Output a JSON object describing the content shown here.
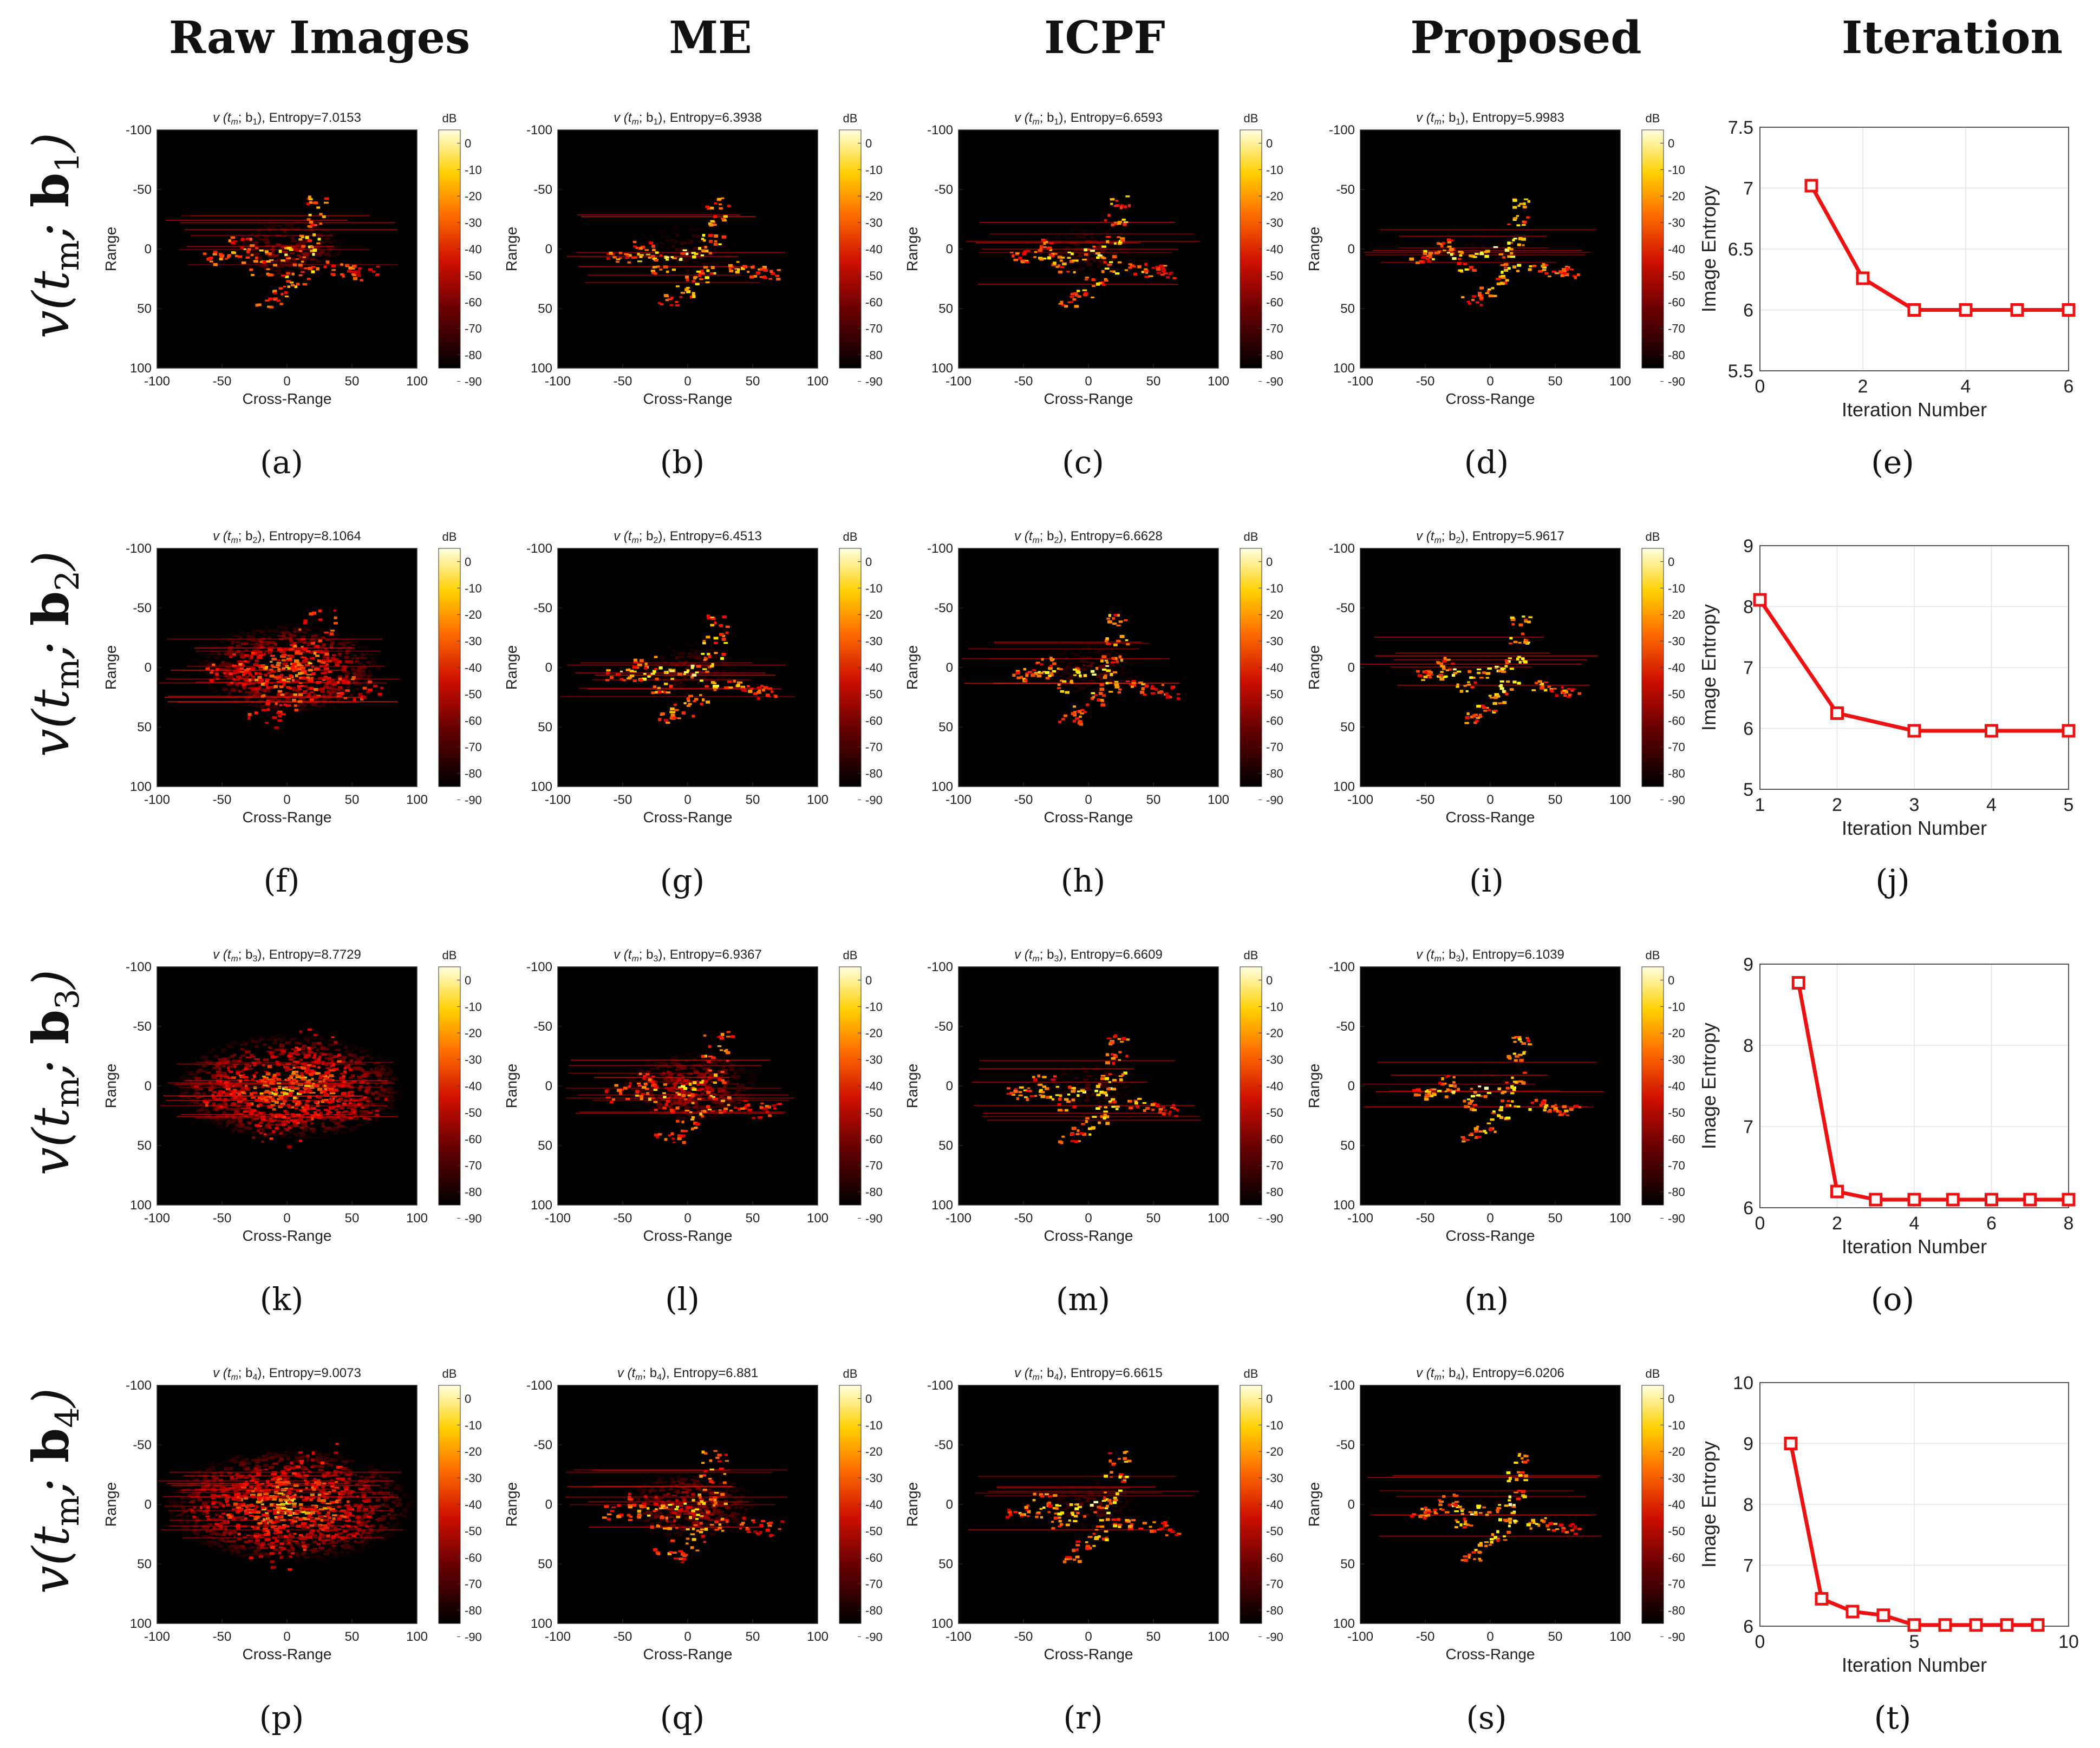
{
  "columns": [
    "Raw Images",
    "ME",
    "ICPF",
    "Proposed",
    "Iteration"
  ],
  "rows": [
    {
      "vector": "b",
      "index": "1"
    },
    {
      "vector": "b",
      "index": "2"
    },
    {
      "vector": "b",
      "index": "3"
    },
    {
      "vector": "b",
      "index": "4"
    }
  ],
  "subfigure_labels": [
    "(a)",
    "(b)",
    "(c)",
    "(d)",
    "(e)",
    "(f)",
    "(g)",
    "(h)",
    "(i)",
    "(j)",
    "(k)",
    "(l)",
    "(m)",
    "(n)",
    "(o)",
    "(p)",
    "(q)",
    "(r)",
    "(s)",
    "(t)"
  ],
  "isar_axes": {
    "xlabel": "Cross-Range",
    "ylabel": "Range",
    "xticks": [
      "-100",
      "-50",
      "0",
      "50",
      "100"
    ],
    "yticks": [
      "-100",
      "-50",
      "0",
      "50",
      "100"
    ],
    "colorbar_unit": "dB",
    "colorbar_ticks": [
      "0",
      "-10",
      "-20",
      "-30",
      "-40",
      "-50",
      "-60",
      "-70",
      "-80",
      "-90"
    ],
    "title_prefix": "v (t",
    "title_mid": "; b",
    "title_suffix": "), Entropy="
  },
  "colors": {
    "line": "#ee1111",
    "hot_low": "#000000",
    "hot_mid": "#d02000",
    "hot_high": "#ffff80"
  },
  "chart_data": [
    {
      "type": "heatmap",
      "row": 1,
      "method": "Raw Images",
      "entropy": "7.0153",
      "spread": 0.25
    },
    {
      "type": "heatmap",
      "row": 1,
      "method": "ME",
      "entropy": "6.3938",
      "spread": 0.12
    },
    {
      "type": "heatmap",
      "row": 1,
      "method": "ICPF",
      "entropy": "6.6593",
      "spread": 0.14
    },
    {
      "type": "heatmap",
      "row": 1,
      "method": "Proposed",
      "entropy": "5.9983",
      "spread": 0.05
    },
    {
      "type": "line",
      "row": 1,
      "xlabel": "Iteration Number",
      "ylabel": "Image Entropy",
      "xlim": [
        0,
        6
      ],
      "ylim": [
        5.5,
        7.5
      ],
      "xticks": [
        "0",
        "2",
        "4",
        "6"
      ],
      "yticks": [
        "5.5",
        "6",
        "6.5",
        "7",
        "7.5"
      ],
      "x": [
        1,
        2,
        3,
        4,
        5,
        6
      ],
      "y": [
        7.02,
        6.26,
        6.0,
        6.0,
        6.0,
        6.0
      ]
    },
    {
      "type": "heatmap",
      "row": 2,
      "method": "Raw Images",
      "entropy": "8.1064",
      "spread": 0.6
    },
    {
      "type": "heatmap",
      "row": 2,
      "method": "ME",
      "entropy": "6.4513",
      "spread": 0.15
    },
    {
      "type": "heatmap",
      "row": 2,
      "method": "ICPF",
      "entropy": "6.6628",
      "spread": 0.14
    },
    {
      "type": "heatmap",
      "row": 2,
      "method": "Proposed",
      "entropy": "5.9617",
      "spread": 0.05
    },
    {
      "type": "line",
      "row": 2,
      "xlabel": "Iteration Number",
      "ylabel": "Image Entropy",
      "xlim": [
        1,
        5
      ],
      "ylim": [
        5,
        9
      ],
      "xticks": [
        "1",
        "2",
        "3",
        "4",
        "5"
      ],
      "yticks": [
        "5",
        "6",
        "7",
        "8",
        "9"
      ],
      "x": [
        1,
        2,
        3,
        4,
        5
      ],
      "y": [
        8.11,
        6.25,
        5.96,
        5.96,
        5.96
      ]
    },
    {
      "type": "heatmap",
      "row": 3,
      "method": "Raw Images",
      "entropy": "8.7729",
      "spread": 0.85
    },
    {
      "type": "heatmap",
      "row": 3,
      "method": "ME",
      "entropy": "6.9367",
      "spread": 0.35
    },
    {
      "type": "heatmap",
      "row": 3,
      "method": "ICPF",
      "entropy": "6.6609",
      "spread": 0.14
    },
    {
      "type": "heatmap",
      "row": 3,
      "method": "Proposed",
      "entropy": "6.1039",
      "spread": 0.06
    },
    {
      "type": "line",
      "row": 3,
      "xlabel": "Iteration Number",
      "ylabel": "Image Entropy",
      "xlim": [
        0,
        8
      ],
      "ylim": [
        6,
        9
      ],
      "xticks": [
        "0",
        "2",
        "4",
        "6",
        "8"
      ],
      "yticks": [
        "6",
        "7",
        "8",
        "9"
      ],
      "x": [
        1,
        2,
        3,
        4,
        5,
        6,
        7,
        8
      ],
      "y": [
        8.77,
        6.2,
        6.1,
        6.1,
        6.1,
        6.1,
        6.1,
        6.1
      ]
    },
    {
      "type": "heatmap",
      "row": 4,
      "method": "Raw Images",
      "entropy": "9.0073",
      "spread": 0.95
    },
    {
      "type": "heatmap",
      "row": 4,
      "method": "ME",
      "entropy": "6.881",
      "spread": 0.33
    },
    {
      "type": "heatmap",
      "row": 4,
      "method": "ICPF",
      "entropy": "6.6615",
      "spread": 0.14
    },
    {
      "type": "heatmap",
      "row": 4,
      "method": "Proposed",
      "entropy": "6.0206",
      "spread": 0.06
    },
    {
      "type": "line",
      "row": 4,
      "xlabel": "Iteration Number",
      "ylabel": "Image Entropy",
      "xlim": [
        0,
        10
      ],
      "ylim": [
        6,
        10
      ],
      "xticks": [
        "0",
        "5",
        "10"
      ],
      "yticks": [
        "6",
        "7",
        "8",
        "9",
        "10"
      ],
      "x": [
        1,
        2,
        3,
        4,
        5,
        6,
        7,
        8,
        9
      ],
      "y": [
        9.0,
        6.45,
        6.24,
        6.18,
        6.02,
        6.02,
        6.02,
        6.02,
        6.02
      ]
    }
  ]
}
